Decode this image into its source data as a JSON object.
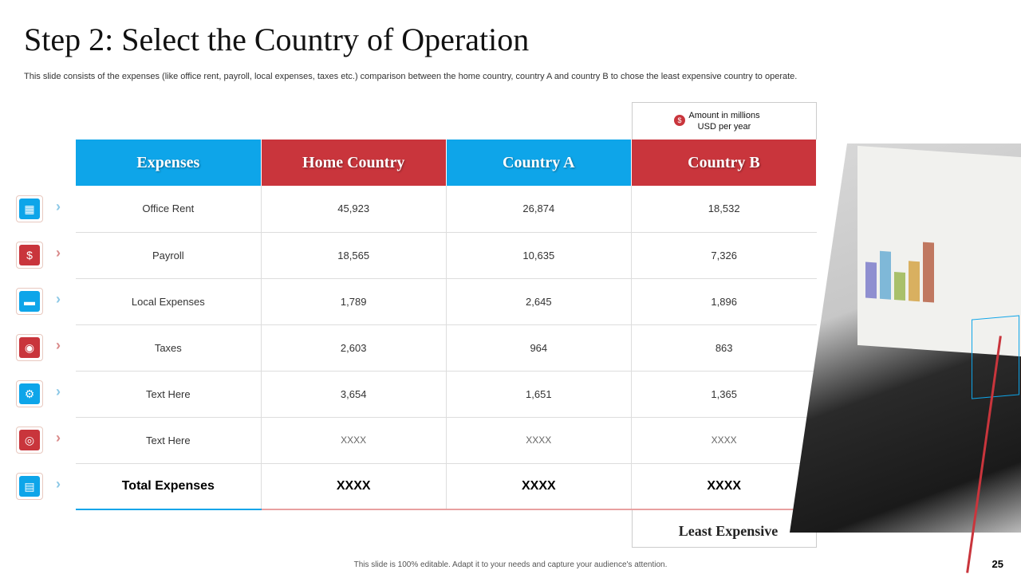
{
  "title": "Step 2: Select the Country of Operation",
  "subtitle": "This slide consists of the expenses (like office rent, payroll, local expenses, taxes etc.) comparison between the home country, country A and country B to chose the least expensive country to operate.",
  "note": {
    "icon": "dollar-icon",
    "symbol": "$",
    "line1": "Amount in millions",
    "line2": "USD per year"
  },
  "headers": [
    "Expenses",
    "Home Country",
    "Country A",
    "Country B"
  ],
  "rows": [
    {
      "label": "Office Rent",
      "values": [
        "45,923",
        "26,874",
        "18,532"
      ],
      "icon": "building-tag-icon"
    },
    {
      "label": "Payroll",
      "values": [
        "18,565",
        "10,635",
        "7,326"
      ],
      "icon": "person-dollar-icon"
    },
    {
      "label": "Local Expenses",
      "values": [
        "1,789",
        "2,645",
        "1,896"
      ],
      "icon": "briefcase-icon"
    },
    {
      "label": "Taxes",
      "values": [
        "2,603",
        "964",
        "863"
      ],
      "icon": "hand-coin-icon"
    },
    {
      "label": "Text Here",
      "values": [
        "3,654",
        "1,651",
        "1,365"
      ],
      "icon": "org-chart-icon"
    },
    {
      "label": "Text Here",
      "values": [
        "XXXX",
        "XXXX",
        "XXXX"
      ],
      "icon": "globe-pin-icon"
    }
  ],
  "total": {
    "label": "Total Expenses",
    "values": [
      "XXXX",
      "XXXX",
      "XXXX"
    ],
    "icon": "document-stack-icon"
  },
  "least_label": "Least Expensive",
  "colors": {
    "blue": "#0ea5e9",
    "red": "#c9353c"
  },
  "footer": "This slide is 100% editable. Adapt it to your needs and capture your audience's attention.",
  "page_number": "25"
}
